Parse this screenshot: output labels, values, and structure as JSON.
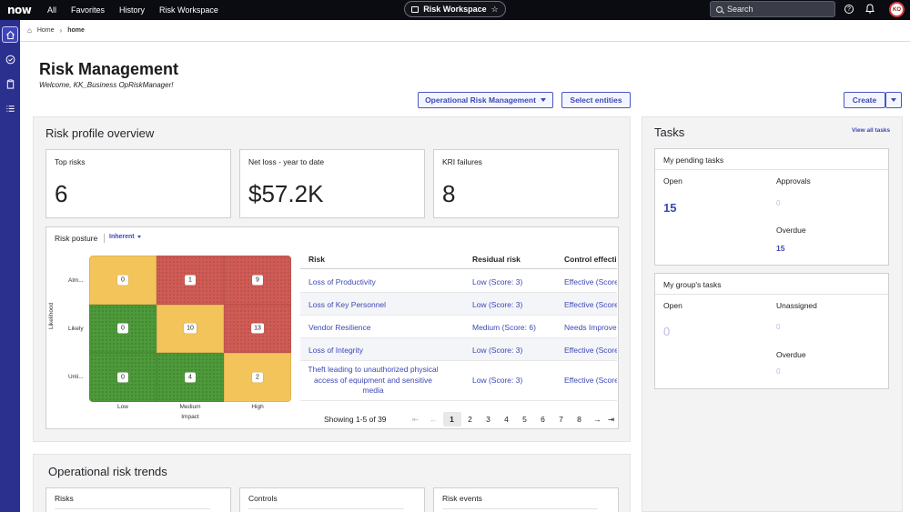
{
  "topnav": {
    "logo": "now",
    "links": [
      "All",
      "Favorites",
      "History",
      "Risk Workspace"
    ],
    "workspace_pill": "Risk Workspace",
    "search_label": "Search",
    "avatar_initials": "KO"
  },
  "breadcrumb": {
    "home": "Home",
    "current": "home"
  },
  "header": {
    "title": "Risk Management",
    "welcome": "Welcome, KK_Business OpRiskManager!",
    "ops_button": "Operational Risk Management",
    "select_button": "Select entities",
    "create_button": "Create"
  },
  "overview": {
    "title": "Risk profile overview",
    "cards": [
      {
        "label": "Top risks",
        "value": "6"
      },
      {
        "label": "Net loss - year to date",
        "value": "$57.2K"
      },
      {
        "label": "KRI failures",
        "value": "8"
      }
    ]
  },
  "posture": {
    "title": "Risk posture",
    "mode": "Inherent",
    "y_title": "Likelihood",
    "x_title": "Impact",
    "y_labels": [
      "Alm...",
      "Likely",
      "Unli..."
    ],
    "x_labels": [
      "Low",
      "Medium",
      "High"
    ],
    "grid": [
      [
        {
          "v": "0",
          "c": "y"
        },
        {
          "v": "1",
          "c": "r"
        },
        {
          "v": "9",
          "c": "r"
        }
      ],
      [
        {
          "v": "0",
          "c": "g"
        },
        {
          "v": "10",
          "c": "y"
        },
        {
          "v": "13",
          "c": "r"
        }
      ],
      [
        {
          "v": "0",
          "c": "g"
        },
        {
          "v": "4",
          "c": "g"
        },
        {
          "v": "2",
          "c": "y"
        }
      ]
    ],
    "colors": {
      "green": "#4d9a3a",
      "yellow": "#f2c45a",
      "red": "#d05b55"
    }
  },
  "risk_table": {
    "headers": [
      "Risk",
      "Residual risk",
      "Control effecti"
    ],
    "rows": [
      {
        "risk": "Loss of Productivity",
        "residual": "Low (Score: 3)",
        "control": "Effective (Score"
      },
      {
        "risk": "Loss of Key Personnel",
        "residual": "Low (Score: 3)",
        "control": "Effective (Score"
      },
      {
        "risk": "Vendor Resilience",
        "residual": "Medium (Score: 6)",
        "control": "Needs Improve"
      },
      {
        "risk": "Loss of Integrity",
        "residual": "Low (Score: 3)",
        "control": "Effective (Score"
      },
      {
        "risk": "Theft leading to unauthorized physical access of equipment and sensitive media",
        "residual": "Low (Score: 3)",
        "control": "Effective (Score"
      }
    ],
    "showing": "Showing 1-5 of 39",
    "pages": [
      "1",
      "2",
      "3",
      "4",
      "5",
      "6",
      "7",
      "8"
    ]
  },
  "tasks": {
    "title": "Tasks",
    "view_all": "View all tasks",
    "pending": {
      "title": "My pending tasks",
      "open_label": "Open",
      "open": "15",
      "approvals_label": "Approvals",
      "approvals": "0",
      "overdue_label": "Overdue",
      "overdue": "15"
    },
    "group": {
      "title": "My group's tasks",
      "open_label": "Open",
      "open": "0",
      "unassigned_label": "Unassigned",
      "unassigned": "0",
      "overdue_label": "Overdue",
      "overdue": "0"
    }
  },
  "trends": {
    "title": "Operational risk trends",
    "cards": [
      "Risks",
      "Controls",
      "Risk events"
    ]
  }
}
